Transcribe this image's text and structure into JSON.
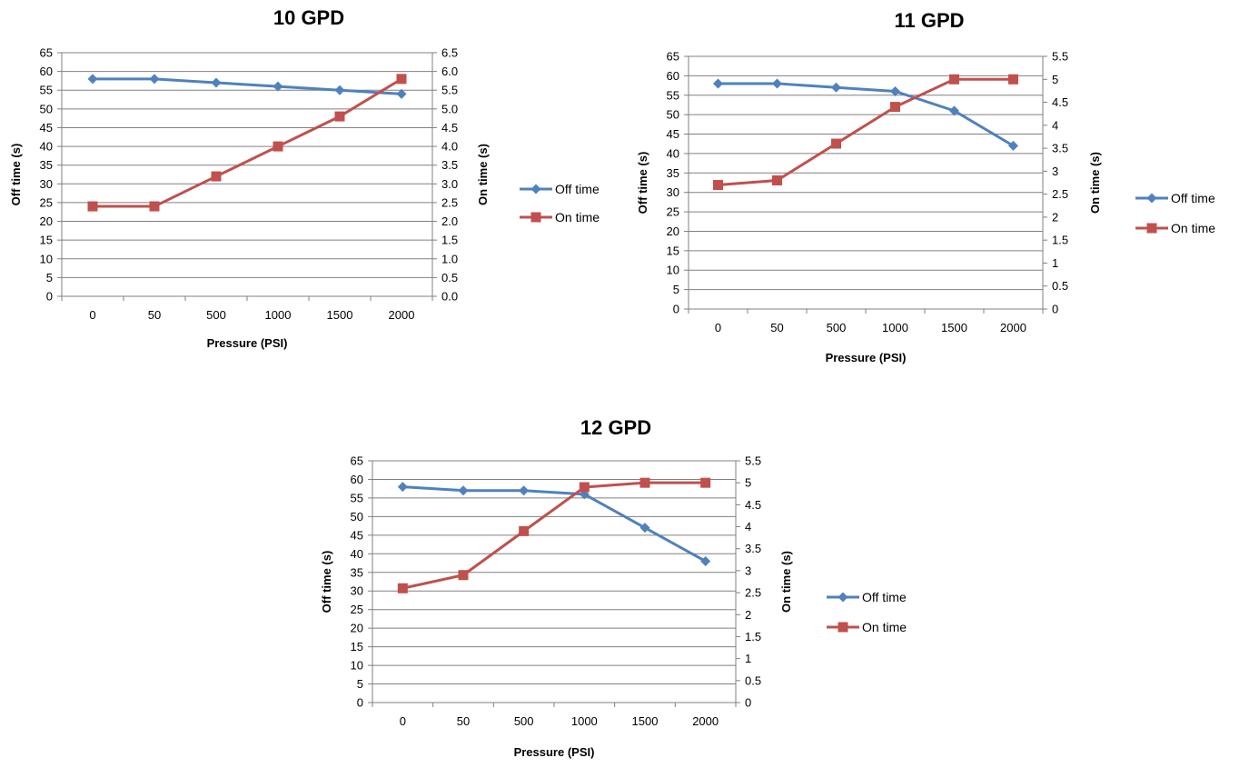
{
  "colors": {
    "off": "#4F81BD",
    "on": "#C0504D",
    "grid": "#808080",
    "axis": "#808080",
    "text": "#000000"
  },
  "chart_data": [
    {
      "type": "line",
      "title": "10 GPD",
      "categories": [
        "0",
        "50",
        "500",
        "1000",
        "1500",
        "2000"
      ],
      "xlabel": "Pressure (PSI)",
      "ylabel": "Off time (s)",
      "y2label": "On time (s)",
      "ylim": [
        0,
        65
      ],
      "ystep": 5,
      "y2lim": [
        0,
        6.5
      ],
      "y2step": 0.5,
      "y2ticks": [
        "0.0",
        "0.5",
        "1.0",
        "1.5",
        "2.0",
        "2.5",
        "3.0",
        "3.5",
        "4.0",
        "4.5",
        "5.0",
        "5.5",
        "6.0",
        "6.5"
      ],
      "grid": true,
      "legend_position": "right",
      "series": [
        {
          "name": "Off time",
          "axis": "left",
          "marker": "diamond",
          "values": [
            58,
            58,
            57,
            56,
            55,
            54
          ]
        },
        {
          "name": "On time",
          "axis": "right",
          "marker": "square",
          "values": [
            2.4,
            2.4,
            3.2,
            4.0,
            4.8,
            5.8
          ]
        }
      ]
    },
    {
      "type": "line",
      "title": "11 GPD",
      "categories": [
        "0",
        "50",
        "500",
        "1000",
        "1500",
        "2000"
      ],
      "xlabel": "Pressure (PSI)",
      "ylabel": "Off time (s)",
      "y2label": "On time (s)",
      "ylim": [
        0,
        65
      ],
      "ystep": 5,
      "y2lim": [
        0,
        5.5
      ],
      "y2step": 0.5,
      "y2ticks": [
        "0",
        "0.5",
        "1",
        "1.5",
        "2",
        "2.5",
        "3",
        "3.5",
        "4",
        "4.5",
        "5",
        "5.5"
      ],
      "grid": true,
      "legend_position": "right",
      "series": [
        {
          "name": "Off time",
          "axis": "left",
          "marker": "diamond",
          "values": [
            58,
            58,
            57,
            56,
            51,
            42
          ]
        },
        {
          "name": "On time",
          "axis": "right",
          "marker": "square",
          "values": [
            2.7,
            2.8,
            3.6,
            4.4,
            5.0,
            5.0
          ]
        }
      ]
    },
    {
      "type": "line",
      "title": "12 GPD",
      "categories": [
        "0",
        "50",
        "500",
        "1000",
        "1500",
        "2000"
      ],
      "xlabel": "Pressure (PSI)",
      "ylabel": "Off time (s)",
      "y2label": "On time (s)",
      "ylim": [
        0,
        65
      ],
      "ystep": 5,
      "y2lim": [
        0,
        5.5
      ],
      "y2step": 0.5,
      "y2ticks": [
        "0",
        "0.5",
        "1",
        "1.5",
        "2",
        "2.5",
        "3",
        "3.5",
        "4",
        "4.5",
        "5",
        "5.5"
      ],
      "grid": true,
      "legend_position": "right",
      "series": [
        {
          "name": "Off time",
          "axis": "left",
          "marker": "diamond",
          "values": [
            58,
            57,
            57,
            56,
            47,
            38
          ]
        },
        {
          "name": "On time",
          "axis": "right",
          "marker": "square",
          "values": [
            2.6,
            2.9,
            3.9,
            4.9,
            5.0,
            5.0
          ]
        }
      ]
    }
  ]
}
